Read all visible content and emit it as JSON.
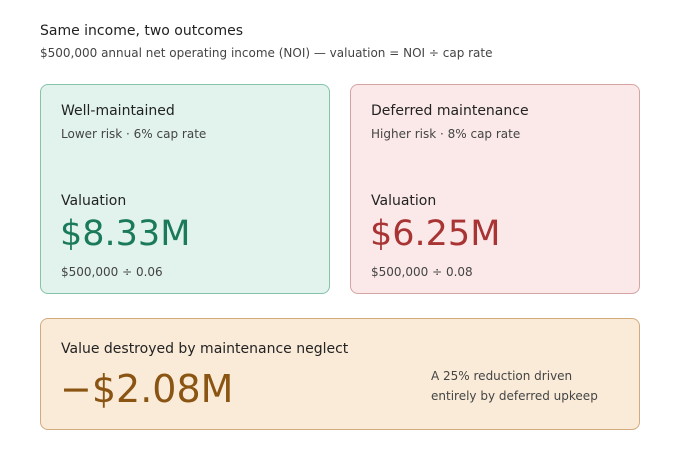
{
  "header": {
    "title": "Same income, two outcomes",
    "subtitle": "$500,000 annual net operating income (NOI) — valuation = NOI ÷ cap rate"
  },
  "cards": [
    {
      "title": "Well-maintained",
      "detail": "Lower risk · 6% cap rate",
      "label": "Valuation",
      "value": "$8.33M",
      "formula": "$500,000 ÷ 0.06"
    },
    {
      "title": "Deferred maintenance",
      "detail": "Higher risk · 8% cap rate",
      "label": "Valuation",
      "value": "$6.25M",
      "formula": "$500,000 ÷ 0.08"
    }
  ],
  "summary": {
    "title": "Value destroyed by maintenance neglect",
    "value": "−$2.08M",
    "note": "A 25% reduction driven entirely by deferred upkeep"
  }
}
